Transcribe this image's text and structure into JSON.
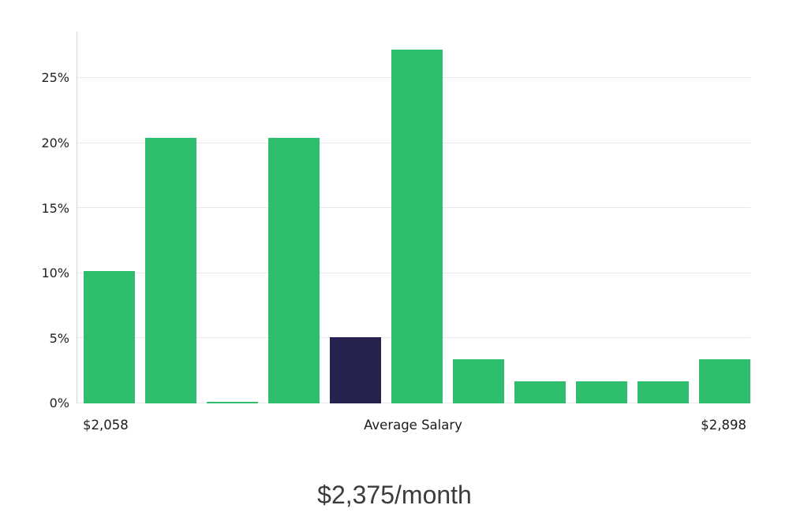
{
  "chart_data": {
    "type": "bar",
    "title": "$2,375/month",
    "values": [
      10.2,
      20.4,
      0.1,
      20.4,
      5.1,
      27.2,
      3.4,
      1.7,
      1.7,
      1.7,
      3.4
    ],
    "highlight_index": 4,
    "bar_color": "#2EBE6E",
    "highlight_color": "#262250",
    "y_ticks": [
      "0%",
      "5%",
      "10%",
      "15%",
      "20%",
      "25%"
    ],
    "y_tick_values": [
      0,
      5,
      10,
      15,
      20,
      25
    ],
    "ylim": [
      0,
      28.6
    ],
    "grid": true,
    "legend_position": "none",
    "xlabel": "",
    "ylabel": "",
    "x_axis": {
      "left_label": "$2,058",
      "center_label": "Average Salary",
      "right_label": "$2,898"
    }
  }
}
